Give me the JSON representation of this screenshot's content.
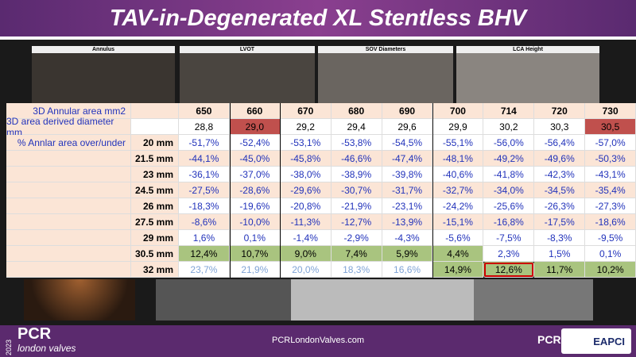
{
  "header": {
    "title": "TAV-in-Degenerated XL Stentless BHV"
  },
  "panels": [
    "Annulus",
    "LVOT",
    "SOV Diameters",
    "LCA Height"
  ],
  "table": {
    "header": {
      "label": "3D Annular area mm2",
      "cells": [
        "650",
        "660",
        "670",
        "680",
        "690",
        "700",
        "714",
        "720",
        "730"
      ]
    },
    "diameter": {
      "label": "3D area derived diameter mm",
      "cells": [
        "28,8",
        "29,0",
        "29,2",
        "29,4",
        "29,6",
        "29,9",
        "30,2",
        "30,3",
        "30,5"
      ]
    },
    "rows": [
      {
        "label": "% Annlar area over/under",
        "size": "20 mm",
        "cells": [
          "-51,7%",
          "-52,4%",
          "-53,1%",
          "-53,8%",
          "-54,5%",
          "-55,1%",
          "-56,0%",
          "-56,4%",
          "-57,0%"
        ]
      },
      {
        "size": "21.5 mm",
        "cells": [
          "-44,1%",
          "-45,0%",
          "-45,8%",
          "-46,6%",
          "-47,4%",
          "-48,1%",
          "-49,2%",
          "-49,6%",
          "-50,3%"
        ]
      },
      {
        "size": "23 mm",
        "cells": [
          "-36,1%",
          "-37,0%",
          "-38,0%",
          "-38,9%",
          "-39,8%",
          "-40,6%",
          "-41,8%",
          "-42,3%",
          "-43,1%"
        ]
      },
      {
        "size": "24.5 mm",
        "cells": [
          "-27,5%",
          "-28,6%",
          "-29,6%",
          "-30,7%",
          "-31,7%",
          "-32,7%",
          "-34,0%",
          "-34,5%",
          "-35,4%"
        ]
      },
      {
        "size": "26 mm",
        "cells": [
          "-18,3%",
          "-19,6%",
          "-20,8%",
          "-21,9%",
          "-23,1%",
          "-24,2%",
          "-25,6%",
          "-26,3%",
          "-27,3%"
        ]
      },
      {
        "size": "27.5 mm",
        "cells": [
          "-8,6%",
          "-10,0%",
          "-11,3%",
          "-12,7%",
          "-13,9%",
          "-15,1%",
          "-16,8%",
          "-17,5%",
          "-18,6%"
        ]
      },
      {
        "size": "29 mm",
        "cells": [
          "1,6%",
          "0,1%",
          "-1,4%",
          "-2,9%",
          "-4,3%",
          "-5,6%",
          "-7,5%",
          "-8,3%",
          "-9,5%"
        ]
      },
      {
        "size": "30.5 mm",
        "cells": [
          "12,4%",
          "10,7%",
          "9,0%",
          "7,4%",
          "5,9%",
          "4,4%",
          "2,3%",
          "1,5%",
          "0,1%"
        ]
      },
      {
        "size": "32 mm",
        "cells": [
          "23,7%",
          "21,9%",
          "20,0%",
          "18,3%",
          "16,6%",
          "14,9%",
          "12,6%",
          "11,7%",
          "10,2%"
        ]
      }
    ]
  },
  "footer": {
    "year": "2023",
    "brand": "PCR",
    "brand_sub": "london valves",
    "url": "PCRLondonValves.com",
    "logo1": "PCR",
    "logo2": "EAPCI"
  }
}
